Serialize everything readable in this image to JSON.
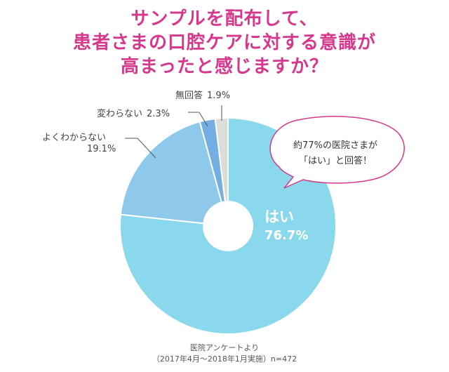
{
  "title_lines": [
    "サンプルを配布して、",
    "患者さまの口腔ケアに対する意識が",
    "高まったと感じますか？"
  ],
  "chart_data": {
    "type": "pie",
    "style": "donut",
    "slices": [
      {
        "label": "はい",
        "value": 76.7,
        "value_label": "76.7%",
        "color": "#8ad8ec"
      },
      {
        "label": "よくわからない",
        "value": 19.1,
        "value_label": "19.1%",
        "color": "#8ec9ec"
      },
      {
        "label": "変わらない",
        "value": 2.3,
        "value_label": "2.3%",
        "color": "#74aee3"
      },
      {
        "label": "無回答",
        "value": 1.9,
        "value_label": "1.9%",
        "color": "#dcdcdc"
      }
    ]
  },
  "callout": {
    "line1": "約77%の医院さまが",
    "line2": "「はい」と回答！",
    "border_color": "#d6388e"
  },
  "footnote": {
    "line1": "医院アンケートより",
    "line2": "（2017年4月〜2018年1月実施）n=472"
  }
}
